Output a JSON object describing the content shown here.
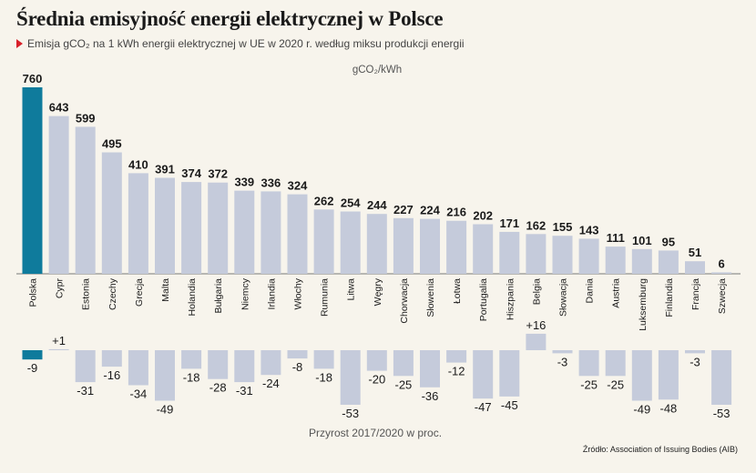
{
  "title": "Średnia emisyjność energii elektrycznej w Polsce",
  "subtitle": "Emisja gCO₂ na 1 kWh energii elektrycznej w UE w 2020 r. według miksu produkcji energii",
  "source": "Źródło: Association of Issuing Bodies (AIB)",
  "colors": {
    "highlight": "#0f7b9c",
    "bar": "#c5cbdb",
    "background": "#f7f4ec",
    "marker": "#d8202a"
  },
  "chart_data": [
    {
      "type": "bar",
      "title": "",
      "ylabel": "gCO₂/kWh",
      "categories": [
        "Polska",
        "Cypr",
        "Estonia",
        "Czechy",
        "Grecja",
        "Malta",
        "Holandia",
        "Bułgaria",
        "Niemcy",
        "Irlandia",
        "Włochy",
        "Rumunia",
        "Litwa",
        "Węgry",
        "Chorwacja",
        "Słowenia",
        "Łotwa",
        "Portugalia",
        "Hiszpania",
        "Belgia",
        "Słowacja",
        "Dania",
        "Austria",
        "Luksemburg",
        "Finlandia",
        "Francja",
        "Szwecja"
      ],
      "values": [
        760,
        643,
        599,
        495,
        410,
        391,
        374,
        372,
        339,
        336,
        324,
        262,
        254,
        244,
        227,
        224,
        216,
        202,
        171,
        162,
        155,
        143,
        111,
        101,
        95,
        51,
        6
      ],
      "highlight": "Polska",
      "ylim": [
        0,
        760
      ],
      "grid": false
    },
    {
      "type": "bar",
      "xlabel": "Przyrost 2017/2020 w proc.",
      "categories": [
        "Polska",
        "Cypr",
        "Estonia",
        "Czechy",
        "Grecja",
        "Malta",
        "Holandia",
        "Bułgaria",
        "Niemcy",
        "Irlandia",
        "Włochy",
        "Rumunia",
        "Litwa",
        "Węgry",
        "Chorwacja",
        "Słowenia",
        "Łotwa",
        "Portugalia",
        "Hiszpania",
        "Belgia",
        "Słowacja",
        "Dania",
        "Austria",
        "Luksemburg",
        "Finlandia",
        "Francja",
        "Szwecja"
      ],
      "values": [
        -9,
        1,
        -31,
        -16,
        -34,
        -49,
        -18,
        -28,
        -31,
        -24,
        -8,
        -18,
        -53,
        -20,
        -25,
        -36,
        -12,
        -47,
        -45,
        16,
        -3,
        -25,
        -25,
        -49,
        -48,
        -3,
        -53
      ],
      "labels": [
        "-9",
        "+1",
        "-31",
        "-16",
        "-34",
        "-49",
        "-18",
        "-28",
        "-31",
        "-24",
        "-8",
        "-18",
        "-53",
        "-20",
        "-25",
        "-36",
        "-12",
        "-47",
        "-45",
        "+16",
        "-3",
        "-25",
        "-25",
        "-49",
        "-48",
        "-3",
        "-53"
      ],
      "highlight": "Polska",
      "ylim": [
        -53,
        16
      ],
      "grid": false
    }
  ]
}
